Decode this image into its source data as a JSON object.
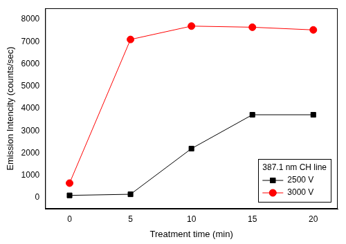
{
  "chart_data": {
    "type": "line",
    "x_label": "Treatment time (min)",
    "y_label": "Emission Intencity (counts/sec)",
    "x": [
      0,
      5,
      10,
      15,
      20
    ],
    "series": [
      {
        "name": "2500 V",
        "color": "#000000",
        "marker": "square",
        "values": [
          100,
          150,
          2200,
          3720,
          3720
        ]
      },
      {
        "name": "3000 V",
        "color": "#ff0000",
        "marker": "circle",
        "values": [
          650,
          7100,
          7700,
          7650,
          7530
        ]
      }
    ],
    "xlim": [
      -2,
      22
    ],
    "xticks": [
      0,
      5,
      10,
      15,
      20
    ],
    "ylim": [
      -500,
      8500
    ],
    "yticks": [
      0,
      1000,
      2000,
      3000,
      4000,
      5000,
      6000,
      7000,
      8000
    ],
    "grid": false,
    "legend": "lower right",
    "legend_title": "387.1 nm CH line"
  }
}
